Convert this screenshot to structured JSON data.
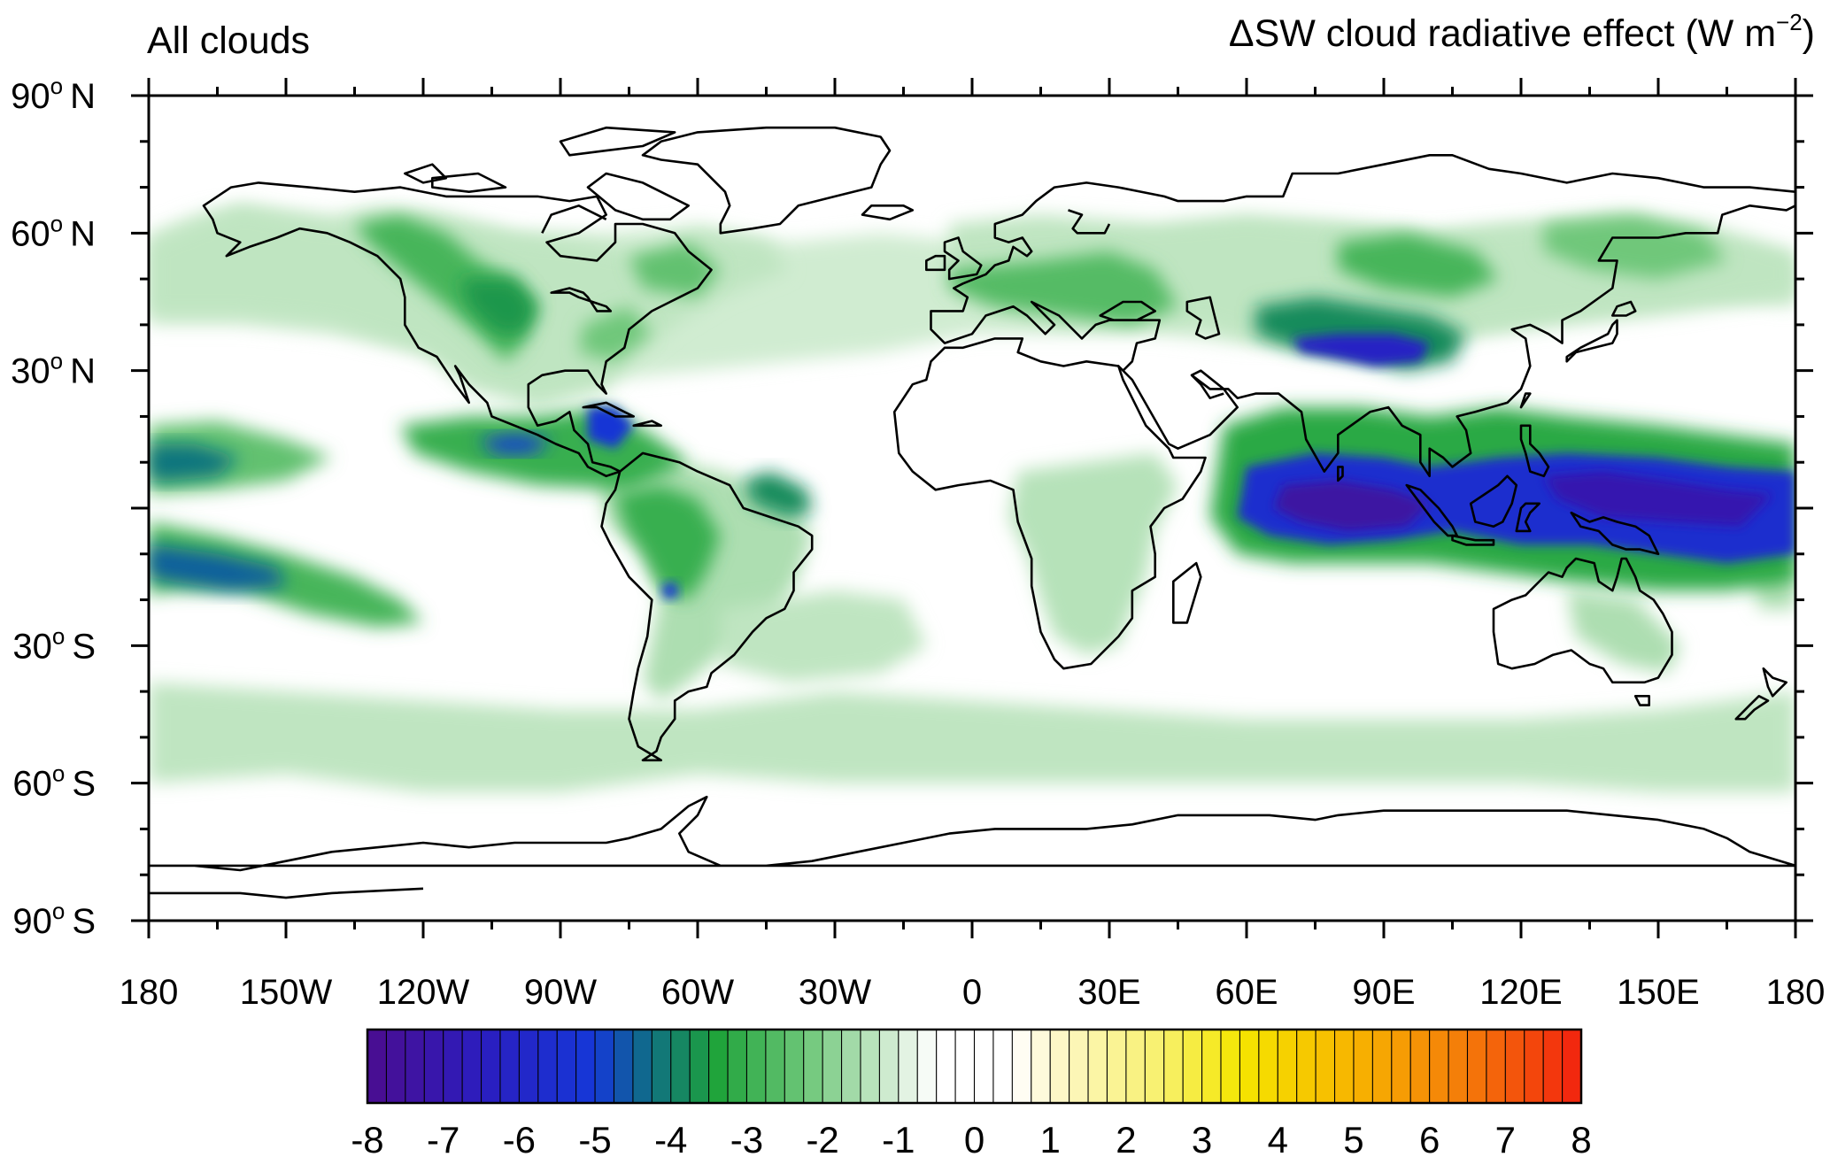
{
  "title_left": "All clouds",
  "title_right": {
    "delta": "Δ",
    "main": "SW cloud radiative effect (W m",
    "exponent": "−2",
    "close": ")"
  },
  "map": {
    "projection": "cylindrical equidistant",
    "lon_range": [
      -180,
      180
    ],
    "lat_range": [
      -90,
      90
    ],
    "lat_ticks": [
      {
        "lat": 90,
        "deg": "90",
        "sup": "o",
        "hemi": "N"
      },
      {
        "lat": 60,
        "deg": "60",
        "sup": "o",
        "hemi": "N"
      },
      {
        "lat": 30,
        "deg": "30",
        "sup": "o",
        "hemi": "N"
      },
      {
        "lat": -30,
        "deg": "30",
        "sup": "o",
        "hemi": "S"
      },
      {
        "lat": -60,
        "deg": "60",
        "sup": "o",
        "hemi": "S"
      },
      {
        "lat": -90,
        "deg": "90",
        "sup": "o",
        "hemi": "S"
      }
    ],
    "lon_ticks": [
      {
        "lon": -180,
        "label": "180"
      },
      {
        "lon": -150,
        "label": "150W"
      },
      {
        "lon": -120,
        "label": "120W"
      },
      {
        "lon": -90,
        "label": "90W"
      },
      {
        "lon": -60,
        "label": "60W"
      },
      {
        "lon": -30,
        "label": "30W"
      },
      {
        "lon": 0,
        "label": "0"
      },
      {
        "lon": 30,
        "label": "30E"
      },
      {
        "lon": 60,
        "label": "60E"
      },
      {
        "lon": 90,
        "label": "90E"
      },
      {
        "lon": 120,
        "label": "120E"
      },
      {
        "lon": 150,
        "label": "150E"
      },
      {
        "lon": 180,
        "label": "180"
      }
    ],
    "field_regions": [
      {
        "name": "west-pacific-indian-warm-pool",
        "lon": [
          55,
          180
        ],
        "lat": [
          -12,
          12
        ],
        "peak": -8
      },
      {
        "name": "central-pacific-north-itcz",
        "lon": [
          -180,
          -150
        ],
        "lat": [
          2,
          15
        ],
        "peak": -4.5
      },
      {
        "name": "central-pacific-south-band",
        "lon": [
          -180,
          -130
        ],
        "lat": [
          -25,
          -5
        ],
        "peak": -5
      },
      {
        "name": "east-pacific-itcz",
        "lon": [
          -115,
          -60
        ],
        "lat": [
          5,
          18
        ],
        "peak": -6
      },
      {
        "name": "caribbean",
        "lon": [
          -90,
          -60
        ],
        "lat": [
          10,
          22
        ],
        "peak": -6
      },
      {
        "name": "amazon",
        "lon": [
          -80,
          -35
        ],
        "lat": [
          -25,
          5
        ],
        "peak": -4.5
      },
      {
        "name": "north-america",
        "lon": [
          -125,
          -75
        ],
        "lat": [
          25,
          65
        ],
        "peak": -4
      },
      {
        "name": "tibetan-plateau",
        "lon": [
          65,
          105
        ],
        "lat": [
          30,
          45
        ],
        "peak": -6.5
      },
      {
        "name": "eurasia-midlatitudes",
        "lon": [
          -5,
          150
        ],
        "lat": [
          35,
          65
        ],
        "peak": -3
      },
      {
        "name": "southern-ocean",
        "lon": [
          -180,
          180
        ],
        "lat": [
          -60,
          -40
        ],
        "peak": -1.5
      },
      {
        "name": "africa",
        "lon": [
          10,
          40
        ],
        "lat": [
          -30,
          8
        ],
        "peak": -1.5
      }
    ]
  },
  "colorbar": {
    "min": -8,
    "max": 8,
    "interval": 0.25,
    "labels": [
      "-8",
      "-7",
      "-6",
      "-5",
      "-4",
      "-3",
      "-2",
      "-1",
      "0",
      "1",
      "2",
      "3",
      "4",
      "5",
      "6",
      "7",
      "8"
    ],
    "colors": [
      {
        "value": -8,
        "color": "#4b0d8f"
      },
      {
        "value": -6.5,
        "color": "#2b1dbf"
      },
      {
        "value": -5,
        "color": "#1538d8"
      },
      {
        "value": -4.3,
        "color": "#0f6e86"
      },
      {
        "value": -3.4,
        "color": "#1ea33a"
      },
      {
        "value": -2.2,
        "color": "#6fc77a"
      },
      {
        "value": -1,
        "color": "#d9efd9"
      },
      {
        "value": -0.5,
        "color": "#ffffff"
      },
      {
        "value": 0.5,
        "color": "#ffffff"
      },
      {
        "value": 1,
        "color": "#fdf8cf"
      },
      {
        "value": 2.5,
        "color": "#f7f06a"
      },
      {
        "value": 3.5,
        "color": "#f5e600"
      },
      {
        "value": 5,
        "color": "#f7b400"
      },
      {
        "value": 6.5,
        "color": "#f47a0a"
      },
      {
        "value": 8,
        "color": "#f2200e"
      }
    ]
  }
}
